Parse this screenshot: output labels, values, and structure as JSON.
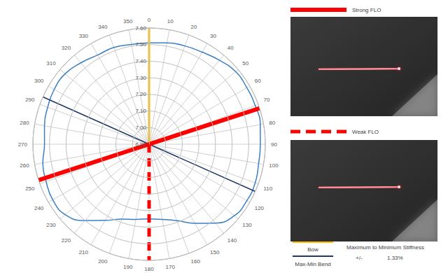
{
  "chart_data": {
    "type": "polar",
    "xlim": [
      0,
      360
    ],
    "xticks": [
      0,
      10,
      20,
      30,
      40,
      50,
      60,
      70,
      80,
      90,
      100,
      110,
      120,
      130,
      140,
      150,
      160,
      170,
      180,
      190,
      200,
      210,
      220,
      230,
      240,
      250,
      260,
      270,
      280,
      290,
      300,
      310,
      320,
      330,
      340,
      350
    ],
    "ylim": [
      6.9,
      7.6
    ],
    "yticks": [
      {
        "value": 6.9,
        "label": "6.90"
      },
      {
        "value": 7.0,
        "label": "7.00"
      },
      {
        "value": 7.1,
        "label": "7.10"
      },
      {
        "value": 7.2,
        "label": "7.20"
      },
      {
        "value": 7.3,
        "label": "7.30"
      },
      {
        "value": 7.4,
        "label": "7.40"
      },
      {
        "value": 7.5,
        "label": "7.50"
      },
      {
        "value": 7.6,
        "label": "7.60"
      }
    ],
    "grid": true,
    "series": [
      {
        "type": "line",
        "color": "#3c7fc4",
        "x": [
          0,
          10,
          20,
          30,
          40,
          50,
          60,
          70,
          80,
          90,
          100,
          110,
          120,
          130,
          140,
          150,
          160,
          170,
          180,
          190,
          200,
          210,
          220,
          230,
          240,
          250,
          260,
          270,
          280,
          290,
          300,
          310,
          320,
          330,
          340,
          350
        ],
        "values": [
          7.51,
          7.52,
          7.53,
          7.54,
          7.56,
          7.58,
          7.58,
          7.58,
          7.58,
          7.57,
          7.57,
          7.58,
          7.58,
          7.57,
          7.52,
          7.45,
          7.39,
          7.36,
          7.35,
          7.36,
          7.38,
          7.43,
          7.5,
          7.56,
          7.57,
          7.56,
          7.55,
          7.53,
          7.54,
          7.55,
          7.56,
          7.56,
          7.54,
          7.52,
          7.52,
          7.51
        ]
      },
      {
        "type": "radial",
        "name": "Strong FLO",
        "color": "#ff0000",
        "line_style": "solid",
        "x": [
          72,
          252
        ]
      },
      {
        "type": "radial",
        "name": "Weak FLO",
        "color": "#ff0000",
        "line_style": "dashed",
        "x": [
          180
        ]
      },
      {
        "type": "radial",
        "name": "Bow",
        "color": "#ffc000",
        "line_style": "solid",
        "x": [
          0
        ]
      },
      {
        "type": "radial",
        "name": "Max-Min Bend",
        "color": "#1f3864",
        "line_style": "solid",
        "x": [
          294,
          114
        ]
      }
    ],
    "annotations": [
      "Maximum to Minimum Stiffness",
      "+/-",
      "1.33%"
    ]
  }
}
